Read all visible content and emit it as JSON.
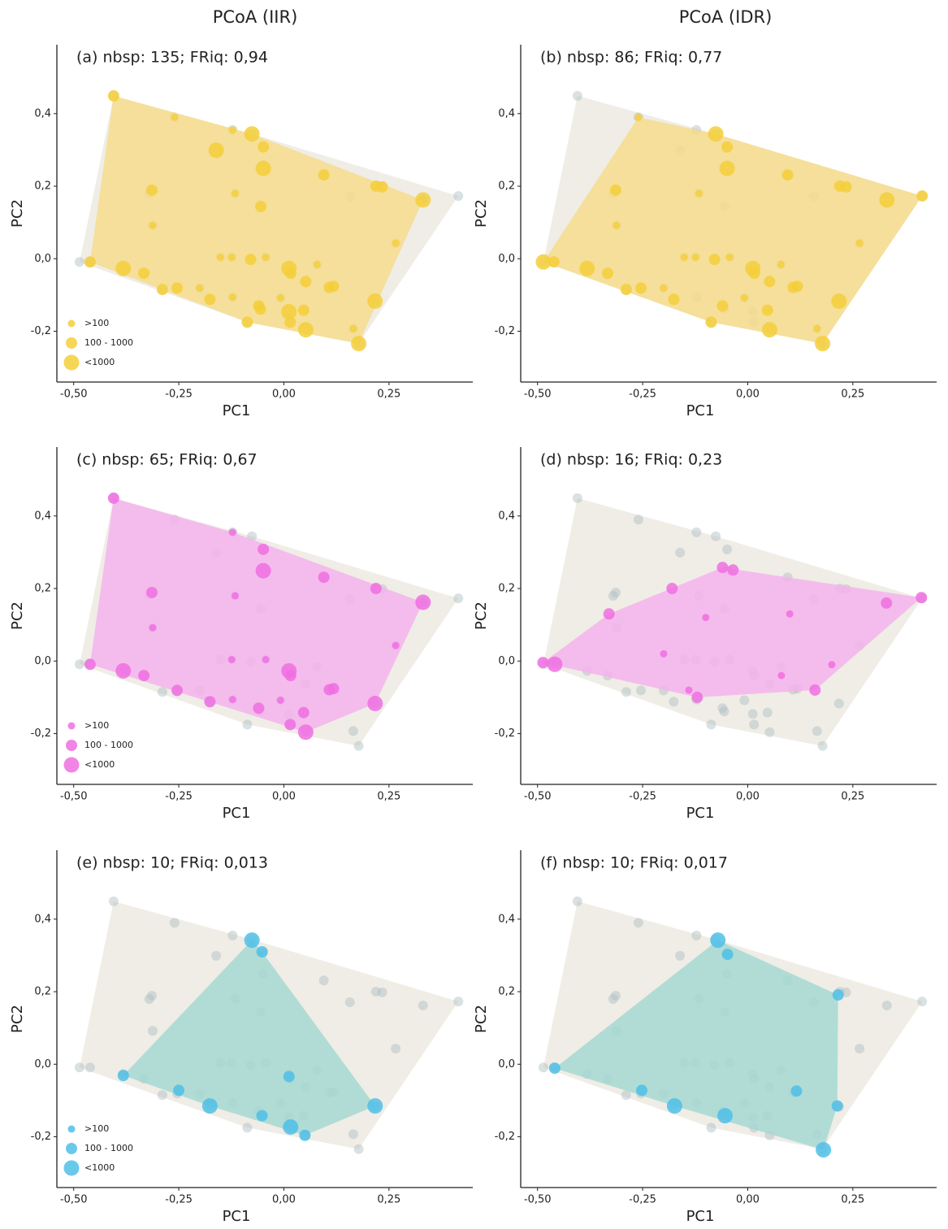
{
  "column_titles": [
    "PCoA  (IIR)",
    "PCoA  (IDR)"
  ],
  "species_pool": {
    "color": "#aebcc1",
    "hull_color": "#efede6",
    "x": [
      -0.405,
      -0.26,
      -0.122,
      -0.076,
      -0.049,
      -0.161,
      -0.314,
      -0.32,
      -0.116,
      -0.049,
      0.095,
      -0.055,
      0.157,
      0.219,
      0.234,
      0.331,
      0.415,
      -0.312,
      0.266,
      -0.486,
      -0.461,
      -0.382,
      -0.151,
      -0.124,
      -0.079,
      0.012,
      0.016,
      -0.043,
      0.079,
      0.052,
      0.108,
      0.118,
      -0.333,
      -0.254,
      -0.289,
      -0.2,
      -0.176,
      -0.122,
      -0.06,
      -0.056,
      0.012,
      0.047,
      0.015,
      0.052,
      0.165,
      0.217,
      0.178,
      -0.087,
      -0.008
    ],
    "y": [
      0.449,
      0.39,
      0.355,
      0.344,
      0.308,
      0.299,
      0.189,
      0.18,
      0.18,
      0.249,
      0.231,
      0.144,
      0.171,
      0.2,
      0.198,
      0.162,
      0.173,
      0.092,
      0.043,
      -0.009,
      -0.009,
      -0.027,
      0.004,
      0.004,
      -0.002,
      -0.027,
      -0.04,
      0.004,
      -0.016,
      -0.063,
      -0.079,
      -0.076,
      -0.04,
      -0.081,
      -0.085,
      -0.081,
      -0.112,
      -0.106,
      -0.13,
      -0.139,
      -0.146,
      -0.142,
      -0.175,
      -0.196,
      -0.193,
      -0.117,
      -0.234,
      -0.175,
      -0.108
    ]
  },
  "chart_data": [
    {
      "type": "scatter",
      "title": "(a) nbsp: 135; FRiq: 0,94",
      "x_label": "PC1",
      "y_label": "PC2",
      "xlim": [
        -0.54,
        0.43
      ],
      "ylim": [
        -0.34,
        0.59
      ],
      "xticks": [
        {
          "value": -0.5,
          "label": "-0,50"
        },
        {
          "value": -0.25,
          "label": "-0,25"
        },
        {
          "value": 0,
          "label": "0,00"
        },
        {
          "value": 0.25,
          "label": "0,25"
        }
      ],
      "yticks": [
        {
          "value": -0.2,
          "label": "-0,2"
        },
        {
          "value": 0,
          "label": "0,0"
        },
        {
          "value": 0.2,
          "label": "0,2"
        },
        {
          "value": 0.4,
          "label": "0,4"
        }
      ],
      "hull_color": "#f6dc8c",
      "legend": "bottom-left",
      "series": [
        {
          "name": ">100",
          "color": "#f5cf3a",
          "x": [
            -0.26,
            -0.122,
            -0.116,
            -0.312,
            0.266,
            -0.151,
            -0.124,
            -0.043,
            0.079,
            -0.122,
            0.165,
            -0.008,
            -0.2
          ],
          "y": [
            0.39,
            0.355,
            0.18,
            0.092,
            0.043,
            0.004,
            0.004,
            0.004,
            -0.016,
            -0.106,
            -0.193,
            -0.108,
            -0.081
          ]
        },
        {
          "name": "100 - 1000",
          "color": "#f5cf3a",
          "x": [
            -0.405,
            -0.049,
            -0.314,
            0.095,
            -0.055,
            0.219,
            0.234,
            -0.079,
            0.016,
            0.052,
            0.108,
            0.118,
            -0.333,
            -0.254,
            -0.289,
            -0.176,
            -0.06,
            -0.056,
            0.047,
            0.015,
            -0.087,
            -0.461
          ],
          "y": [
            0.449,
            0.308,
            0.189,
            0.231,
            0.144,
            0.2,
            0.198,
            -0.002,
            -0.04,
            -0.063,
            -0.079,
            -0.076,
            -0.04,
            -0.081,
            -0.085,
            -0.112,
            -0.13,
            -0.139,
            -0.142,
            -0.175,
            -0.175,
            -0.009
          ]
        },
        {
          "name": "<1000",
          "color": "#f5cf3a",
          "x": [
            -0.076,
            -0.161,
            -0.049,
            0.331,
            0.012,
            0.012,
            0.052,
            0.217,
            0.178,
            -0.382
          ],
          "y": [
            0.344,
            0.299,
            0.249,
            0.162,
            -0.027,
            -0.146,
            -0.196,
            -0.117,
            -0.234,
            -0.027
          ]
        }
      ]
    },
    {
      "type": "scatter",
      "title": "(b) nbsp: 86; FRiq: 0,77",
      "x_label": "PC1",
      "y_label": "PC2",
      "xlim": [
        -0.54,
        0.43
      ],
      "ylim": [
        -0.34,
        0.59
      ],
      "xticks": [
        {
          "value": -0.5,
          "label": "-0,50"
        },
        {
          "value": -0.25,
          "label": "-0,25"
        },
        {
          "value": 0,
          "label": "0,00"
        },
        {
          "value": 0.25,
          "label": "0,25"
        }
      ],
      "yticks": [
        {
          "value": -0.2,
          "label": "-0,2"
        },
        {
          "value": 0,
          "label": "0,0"
        },
        {
          "value": 0.2,
          "label": "0,2"
        },
        {
          "value": 0.4,
          "label": "0,4"
        }
      ],
      "hull_color": "#f6dc8c",
      "series": [
        {
          "color": "#f5cf3a",
          "x": [
            -0.26,
            -0.116,
            -0.312,
            0.266,
            -0.151,
            -0.124,
            -0.043,
            0.079,
            0.165,
            -0.008,
            -0.2
          ],
          "y": [
            0.39,
            0.18,
            0.092,
            0.043,
            0.004,
            0.004,
            0.004,
            -0.016,
            -0.193,
            -0.108,
            -0.081
          ]
        },
        {
          "color": "#f5cf3a",
          "x": [
            -0.049,
            -0.314,
            0.095,
            0.219,
            0.234,
            -0.079,
            0.016,
            0.052,
            0.108,
            0.118,
            -0.333,
            -0.254,
            -0.289,
            -0.176,
            -0.06,
            0.047,
            -0.087,
            -0.461,
            0.415
          ],
          "y": [
            0.308,
            0.189,
            0.231,
            0.2,
            0.198,
            -0.002,
            -0.04,
            -0.063,
            -0.079,
            -0.076,
            -0.04,
            -0.081,
            -0.085,
            -0.112,
            -0.13,
            -0.142,
            -0.175,
            -0.009,
            0.173
          ]
        },
        {
          "color": "#f5cf3a",
          "x": [
            -0.076,
            -0.049,
            0.331,
            0.012,
            0.052,
            0.217,
            0.178,
            -0.382,
            -0.486
          ],
          "y": [
            0.344,
            0.249,
            0.162,
            -0.027,
            -0.196,
            -0.117,
            -0.234,
            -0.027,
            -0.009
          ]
        }
      ]
    },
    {
      "type": "scatter",
      "title": "(c) nbsp: 65; FRiq: 0,67",
      "x_label": "PC1",
      "y_label": "PC2",
      "xlim": [
        -0.54,
        0.43
      ],
      "ylim": [
        -0.34,
        0.59
      ],
      "xticks": [
        {
          "value": -0.5,
          "label": "-0,50"
        },
        {
          "value": -0.25,
          "label": "-0,25"
        },
        {
          "value": 0,
          "label": "0,00"
        },
        {
          "value": 0.25,
          "label": "0,25"
        }
      ],
      "yticks": [
        {
          "value": -0.2,
          "label": "-0,2"
        },
        {
          "value": 0,
          "label": "0,0"
        },
        {
          "value": 0.2,
          "label": "0,2"
        },
        {
          "value": 0.4,
          "label": "0,4"
        }
      ],
      "hull_color": "#f4b3ec",
      "legend": "bottom-left",
      "series": [
        {
          "name": ">100",
          "color": "#f06fe2",
          "x": [
            -0.122,
            -0.116,
            -0.312,
            0.266,
            -0.124,
            -0.043,
            -0.122,
            -0.008
          ],
          "y": [
            0.355,
            0.18,
            0.092,
            0.043,
            0.004,
            0.004,
            -0.106,
            -0.108
          ]
        },
        {
          "name": "100 - 1000",
          "color": "#f06fe2",
          "x": [
            -0.405,
            -0.049,
            -0.314,
            0.095,
            0.219,
            0.016,
            0.108,
            0.118,
            -0.333,
            -0.254,
            -0.176,
            -0.06,
            0.047,
            0.015,
            -0.461
          ],
          "y": [
            0.449,
            0.308,
            0.189,
            0.231,
            0.2,
            -0.04,
            -0.079,
            -0.076,
            -0.04,
            -0.081,
            -0.112,
            -0.13,
            -0.142,
            -0.175,
            -0.009
          ]
        },
        {
          "name": "<1000",
          "color": "#f06fe2",
          "x": [
            -0.049,
            0.331,
            0.012,
            0.052,
            0.217,
            -0.382
          ],
          "y": [
            0.249,
            0.162,
            -0.027,
            -0.196,
            -0.117,
            -0.027
          ]
        }
      ]
    },
    {
      "type": "scatter",
      "title": "(d) nbsp: 16; FRiq: 0,23",
      "x_label": "PC1",
      "y_label": "PC2",
      "xlim": [
        -0.54,
        0.43
      ],
      "ylim": [
        -0.34,
        0.59
      ],
      "xticks": [
        {
          "value": -0.5,
          "label": "-0,50"
        },
        {
          "value": -0.25,
          "label": "-0,25"
        },
        {
          "value": 0,
          "label": "0,00"
        },
        {
          "value": 0.25,
          "label": "0,25"
        }
      ],
      "yticks": [
        {
          "value": -0.2,
          "label": "-0,2"
        },
        {
          "value": 0,
          "label": "0,0"
        },
        {
          "value": 0.2,
          "label": "0,2"
        },
        {
          "value": 0.4,
          "label": "0,4"
        }
      ],
      "hull_color": "#f4b3ec",
      "series": [
        {
          "color": "#f06fe2",
          "x": [
            -0.2,
            0.08,
            -0.14,
            0.2,
            -0.1,
            0.1
          ],
          "y": [
            0.02,
            -0.04,
            -0.08,
            -0.01,
            0.12,
            0.13
          ]
        },
        {
          "color": "#f06fe2",
          "x": [
            -0.487,
            -0.06,
            -0.035,
            0.413,
            -0.33,
            -0.12,
            0.33,
            -0.18,
            0.16
          ],
          "y": [
            -0.004,
            0.258,
            0.251,
            0.175,
            0.13,
            -0.1,
            0.16,
            0.2,
            -0.08
          ]
        },
        {
          "color": "#f06fe2",
          "x": [
            -0.459
          ],
          "y": [
            -0.009
          ]
        }
      ]
    },
    {
      "type": "scatter",
      "title": "(e) nbsp: 10; FRiq: 0,013",
      "x_label": "PC1",
      "y_label": "PC2",
      "xlim": [
        -0.54,
        0.43
      ],
      "ylim": [
        -0.34,
        0.59
      ],
      "xticks": [
        {
          "value": -0.5,
          "label": "-0,50"
        },
        {
          "value": -0.25,
          "label": "-0,25"
        },
        {
          "value": 0,
          "label": "0,00"
        },
        {
          "value": 0.25,
          "label": "0,25"
        }
      ],
      "yticks": [
        {
          "value": -0.2,
          "label": "-0,2"
        },
        {
          "value": 0,
          "label": "0,0"
        },
        {
          "value": 0.2,
          "label": "0,2"
        },
        {
          "value": 0.4,
          "label": "0,4"
        }
      ],
      "hull_color": "#a6d8d2",
      "legend": "bottom-left",
      "series": [
        {
          "name": ">100",
          "color": "#4fbfe8",
          "x": [],
          "y": []
        },
        {
          "name": "100 - 1000",
          "color": "#4fbfe8",
          "x": [
            -0.052,
            -0.382,
            -0.25,
            -0.052,
            0.05,
            0.012
          ],
          "y": [
            0.31,
            -0.031,
            -0.072,
            -0.142,
            -0.196,
            -0.034
          ]
        },
        {
          "name": "<1000",
          "color": "#4fbfe8",
          "x": [
            -0.076,
            -0.176,
            0.016,
            0.217
          ],
          "y": [
            0.342,
            -0.115,
            -0.173,
            -0.115
          ]
        }
      ]
    },
    {
      "type": "scatter",
      "title": "(f) nbsp: 10; FRiq: 0,017",
      "x_label": "PC1",
      "y_label": "PC2",
      "xlim": [
        -0.54,
        0.43
      ],
      "ylim": [
        -0.34,
        0.59
      ],
      "xticks": [
        {
          "value": -0.5,
          "label": "-0,50"
        },
        {
          "value": -0.25,
          "label": "-0,25"
        },
        {
          "value": 0,
          "label": "0,00"
        },
        {
          "value": 0.25,
          "label": "0,25"
        }
      ],
      "yticks": [
        {
          "value": -0.2,
          "label": "-0,2"
        },
        {
          "value": 0,
          "label": "0,0"
        },
        {
          "value": 0.2,
          "label": "0,2"
        },
        {
          "value": 0.4,
          "label": "0,4"
        }
      ],
      "hull_color": "#a6d8d2",
      "series": [
        {
          "color": "#4fbfe8",
          "x": [],
          "y": []
        },
        {
          "color": "#4fbfe8",
          "x": [
            -0.048,
            0.215,
            -0.459,
            0.116,
            -0.252,
            0.213
          ],
          "y": [
            0.303,
            0.191,
            -0.011,
            -0.074,
            -0.072,
            -0.115
          ]
        },
        {
          "color": "#4fbfe8",
          "x": [
            -0.071,
            -0.174,
            -0.054,
            0.18
          ],
          "y": [
            0.342,
            -0.115,
            -0.142,
            -0.236
          ]
        }
      ]
    }
  ]
}
